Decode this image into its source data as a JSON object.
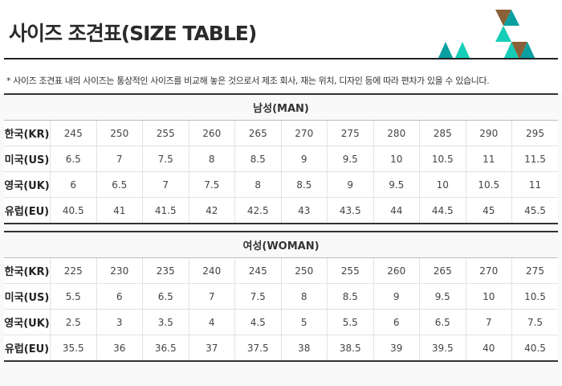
{
  "title": "사이즈 조견표(SIZE TABLE)",
  "note": "* 사이즈 조견표 내의 사이즈는 통상적인 사이즈를 비교해 놓은 것으로서 제조 회사, 재는 위치, 디자인 등에 따라 편차가 있을 수 있습니다.",
  "colors": {
    "teal": "#0a9fa0",
    "cyan": "#16cdb8",
    "brown": "#8a6038"
  },
  "men": {
    "heading": "남성(MAN)",
    "rows": [
      {
        "label": "한국(KR)",
        "values": [
          "245",
          "250",
          "255",
          "260",
          "265",
          "270",
          "275",
          "280",
          "285",
          "290",
          "295"
        ]
      },
      {
        "label": "미국(US)",
        "values": [
          "6.5",
          "7",
          "7.5",
          "8",
          "8.5",
          "9",
          "9.5",
          "10",
          "10.5",
          "11",
          "11.5"
        ]
      },
      {
        "label": "영국(UK)",
        "values": [
          "6",
          "6.5",
          "7",
          "7.5",
          "8",
          "8.5",
          "9",
          "9.5",
          "10",
          "10.5",
          "11"
        ]
      },
      {
        "label": "유럽(EU)",
        "values": [
          "40.5",
          "41",
          "41.5",
          "42",
          "42.5",
          "43",
          "43.5",
          "44",
          "44.5",
          "45",
          "45.5"
        ]
      }
    ]
  },
  "women": {
    "heading": "여성(WOMAN)",
    "rows": [
      {
        "label": "한국(KR)",
        "values": [
          "225",
          "230",
          "235",
          "240",
          "245",
          "250",
          "255",
          "260",
          "265",
          "270",
          "275"
        ]
      },
      {
        "label": "미국(US)",
        "values": [
          "5.5",
          "6",
          "6.5",
          "7",
          "7.5",
          "8",
          "8.5",
          "9",
          "9.5",
          "10",
          "10.5"
        ]
      },
      {
        "label": "영국(UK)",
        "values": [
          "2.5",
          "3",
          "3.5",
          "4",
          "4.5",
          "5",
          "5.5",
          "6",
          "6.5",
          "7",
          "7.5"
        ]
      },
      {
        "label": "유럽(EU)",
        "values": [
          "35.5",
          "36",
          "36.5",
          "37",
          "37.5",
          "38",
          "38.5",
          "39",
          "39.5",
          "40",
          "40.5"
        ]
      }
    ]
  }
}
